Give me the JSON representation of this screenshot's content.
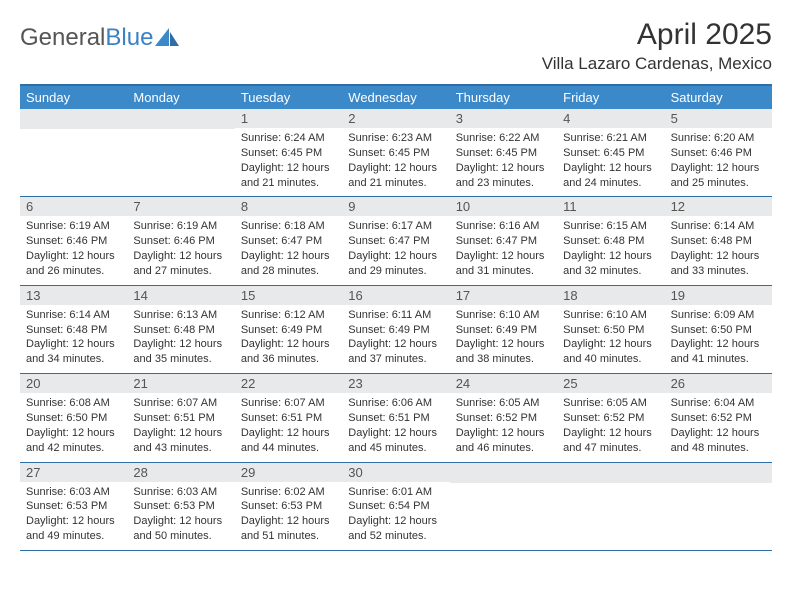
{
  "brand": {
    "g": "General",
    "b": "Blue"
  },
  "title": "April 2025",
  "location": "Villa Lazaro Cardenas, Mexico",
  "colors": {
    "brand_blue": "#3b89c9",
    "rule_blue": "#2f6ea5",
    "daynum_bg": "#e8e9ea",
    "text": "#333333",
    "bg": "#ffffff"
  },
  "dows": [
    "Sunday",
    "Monday",
    "Tuesday",
    "Wednesday",
    "Thursday",
    "Friday",
    "Saturday"
  ],
  "weeks": [
    [
      null,
      null,
      {
        "n": "1",
        "sr": "6:24 AM",
        "ss": "6:45 PM",
        "dl": "12 hours and 21 minutes."
      },
      {
        "n": "2",
        "sr": "6:23 AM",
        "ss": "6:45 PM",
        "dl": "12 hours and 21 minutes."
      },
      {
        "n": "3",
        "sr": "6:22 AM",
        "ss": "6:45 PM",
        "dl": "12 hours and 23 minutes."
      },
      {
        "n": "4",
        "sr": "6:21 AM",
        "ss": "6:45 PM",
        "dl": "12 hours and 24 minutes."
      },
      {
        "n": "5",
        "sr": "6:20 AM",
        "ss": "6:46 PM",
        "dl": "12 hours and 25 minutes."
      }
    ],
    [
      {
        "n": "6",
        "sr": "6:19 AM",
        "ss": "6:46 PM",
        "dl": "12 hours and 26 minutes."
      },
      {
        "n": "7",
        "sr": "6:19 AM",
        "ss": "6:46 PM",
        "dl": "12 hours and 27 minutes."
      },
      {
        "n": "8",
        "sr": "6:18 AM",
        "ss": "6:47 PM",
        "dl": "12 hours and 28 minutes."
      },
      {
        "n": "9",
        "sr": "6:17 AM",
        "ss": "6:47 PM",
        "dl": "12 hours and 29 minutes."
      },
      {
        "n": "10",
        "sr": "6:16 AM",
        "ss": "6:47 PM",
        "dl": "12 hours and 31 minutes."
      },
      {
        "n": "11",
        "sr": "6:15 AM",
        "ss": "6:48 PM",
        "dl": "12 hours and 32 minutes."
      },
      {
        "n": "12",
        "sr": "6:14 AM",
        "ss": "6:48 PM",
        "dl": "12 hours and 33 minutes."
      }
    ],
    [
      {
        "n": "13",
        "sr": "6:14 AM",
        "ss": "6:48 PM",
        "dl": "12 hours and 34 minutes."
      },
      {
        "n": "14",
        "sr": "6:13 AM",
        "ss": "6:48 PM",
        "dl": "12 hours and 35 minutes."
      },
      {
        "n": "15",
        "sr": "6:12 AM",
        "ss": "6:49 PM",
        "dl": "12 hours and 36 minutes."
      },
      {
        "n": "16",
        "sr": "6:11 AM",
        "ss": "6:49 PM",
        "dl": "12 hours and 37 minutes."
      },
      {
        "n": "17",
        "sr": "6:10 AM",
        "ss": "6:49 PM",
        "dl": "12 hours and 38 minutes."
      },
      {
        "n": "18",
        "sr": "6:10 AM",
        "ss": "6:50 PM",
        "dl": "12 hours and 40 minutes."
      },
      {
        "n": "19",
        "sr": "6:09 AM",
        "ss": "6:50 PM",
        "dl": "12 hours and 41 minutes."
      }
    ],
    [
      {
        "n": "20",
        "sr": "6:08 AM",
        "ss": "6:50 PM",
        "dl": "12 hours and 42 minutes."
      },
      {
        "n": "21",
        "sr": "6:07 AM",
        "ss": "6:51 PM",
        "dl": "12 hours and 43 minutes."
      },
      {
        "n": "22",
        "sr": "6:07 AM",
        "ss": "6:51 PM",
        "dl": "12 hours and 44 minutes."
      },
      {
        "n": "23",
        "sr": "6:06 AM",
        "ss": "6:51 PM",
        "dl": "12 hours and 45 minutes."
      },
      {
        "n": "24",
        "sr": "6:05 AM",
        "ss": "6:52 PM",
        "dl": "12 hours and 46 minutes."
      },
      {
        "n": "25",
        "sr": "6:05 AM",
        "ss": "6:52 PM",
        "dl": "12 hours and 47 minutes."
      },
      {
        "n": "26",
        "sr": "6:04 AM",
        "ss": "6:52 PM",
        "dl": "12 hours and 48 minutes."
      }
    ],
    [
      {
        "n": "27",
        "sr": "6:03 AM",
        "ss": "6:53 PM",
        "dl": "12 hours and 49 minutes."
      },
      {
        "n": "28",
        "sr": "6:03 AM",
        "ss": "6:53 PM",
        "dl": "12 hours and 50 minutes."
      },
      {
        "n": "29",
        "sr": "6:02 AM",
        "ss": "6:53 PM",
        "dl": "12 hours and 51 minutes."
      },
      {
        "n": "30",
        "sr": "6:01 AM",
        "ss": "6:54 PM",
        "dl": "12 hours and 52 minutes."
      },
      null,
      null,
      null
    ]
  ]
}
